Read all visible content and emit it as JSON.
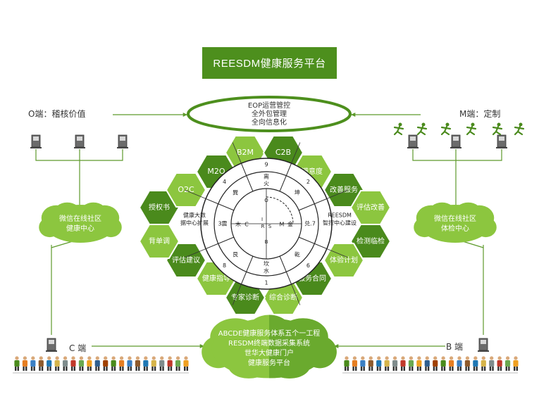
{
  "title": "REESDM健康服务平台",
  "top_ellipse": {
    "lines": [
      "EOP运营管控",
      "全外包管理",
      "全向信息化"
    ]
  },
  "o_end": {
    "label": "O端：稽核价值"
  },
  "m_end": {
    "label": "M端：定制"
  },
  "c_end": {
    "label": "C 端"
  },
  "b_end": {
    "label": "B 端"
  },
  "left_cloud": {
    "lines": [
      "微信在线社区",
      "健康中心"
    ]
  },
  "right_cloud": {
    "lines": [
      "微信在线社区",
      "体检中心"
    ]
  },
  "bottom_cloud": {
    "lines": [
      "ABCDE健康服务体系五个一工程",
      "RESDM终端数据采集系统",
      "世华大健康门户",
      "健康服务平台"
    ]
  },
  "hexagons": [
    "B2M",
    "C2B",
    "满意度",
    "改善服务",
    "评估改善",
    "检测临检",
    "体验计划",
    "服务合同",
    "综合诊断",
    "专家诊断",
    "健康指导",
    "评估建议",
    "背单调",
    "授权书",
    "O2C",
    "M2O"
  ],
  "wheel": {
    "sectors": [
      {
        "num": "9",
        "lines": [
          "离",
          "火"
        ]
      },
      {
        "num": "2",
        "lines": [
          "坤"
        ]
      },
      {
        "num": "",
        "lines": [
          "兑.7"
        ]
      },
      {
        "num": "6",
        "lines": [
          "乾"
        ]
      },
      {
        "num": "1",
        "lines": [
          "坎",
          "水"
        ]
      },
      {
        "num": "8",
        "lines": [
          "艮"
        ]
      },
      {
        "num": "",
        "lines": [
          "3震"
        ]
      },
      {
        "num": "4",
        "lines": [
          "巽"
        ]
      }
    ],
    "inner_labels": [
      "C",
      "M",
      "金",
      "木"
    ],
    "center_letters": [
      "O",
      "I",
      "R",
      "S",
      "B"
    ],
    "left_text": [
      "健康大数",
      "据中心扩展"
    ],
    "right_text": [
      "REESDM",
      "智控中心建设"
    ]
  },
  "colors": {
    "dark_green": "#4a8a1c",
    "light_green": "#8cc63f",
    "mid_green": "#6aaa2e"
  },
  "icons": [
    "computer-terminal-icon",
    "athlete-icon",
    "person-figure-icon"
  ]
}
